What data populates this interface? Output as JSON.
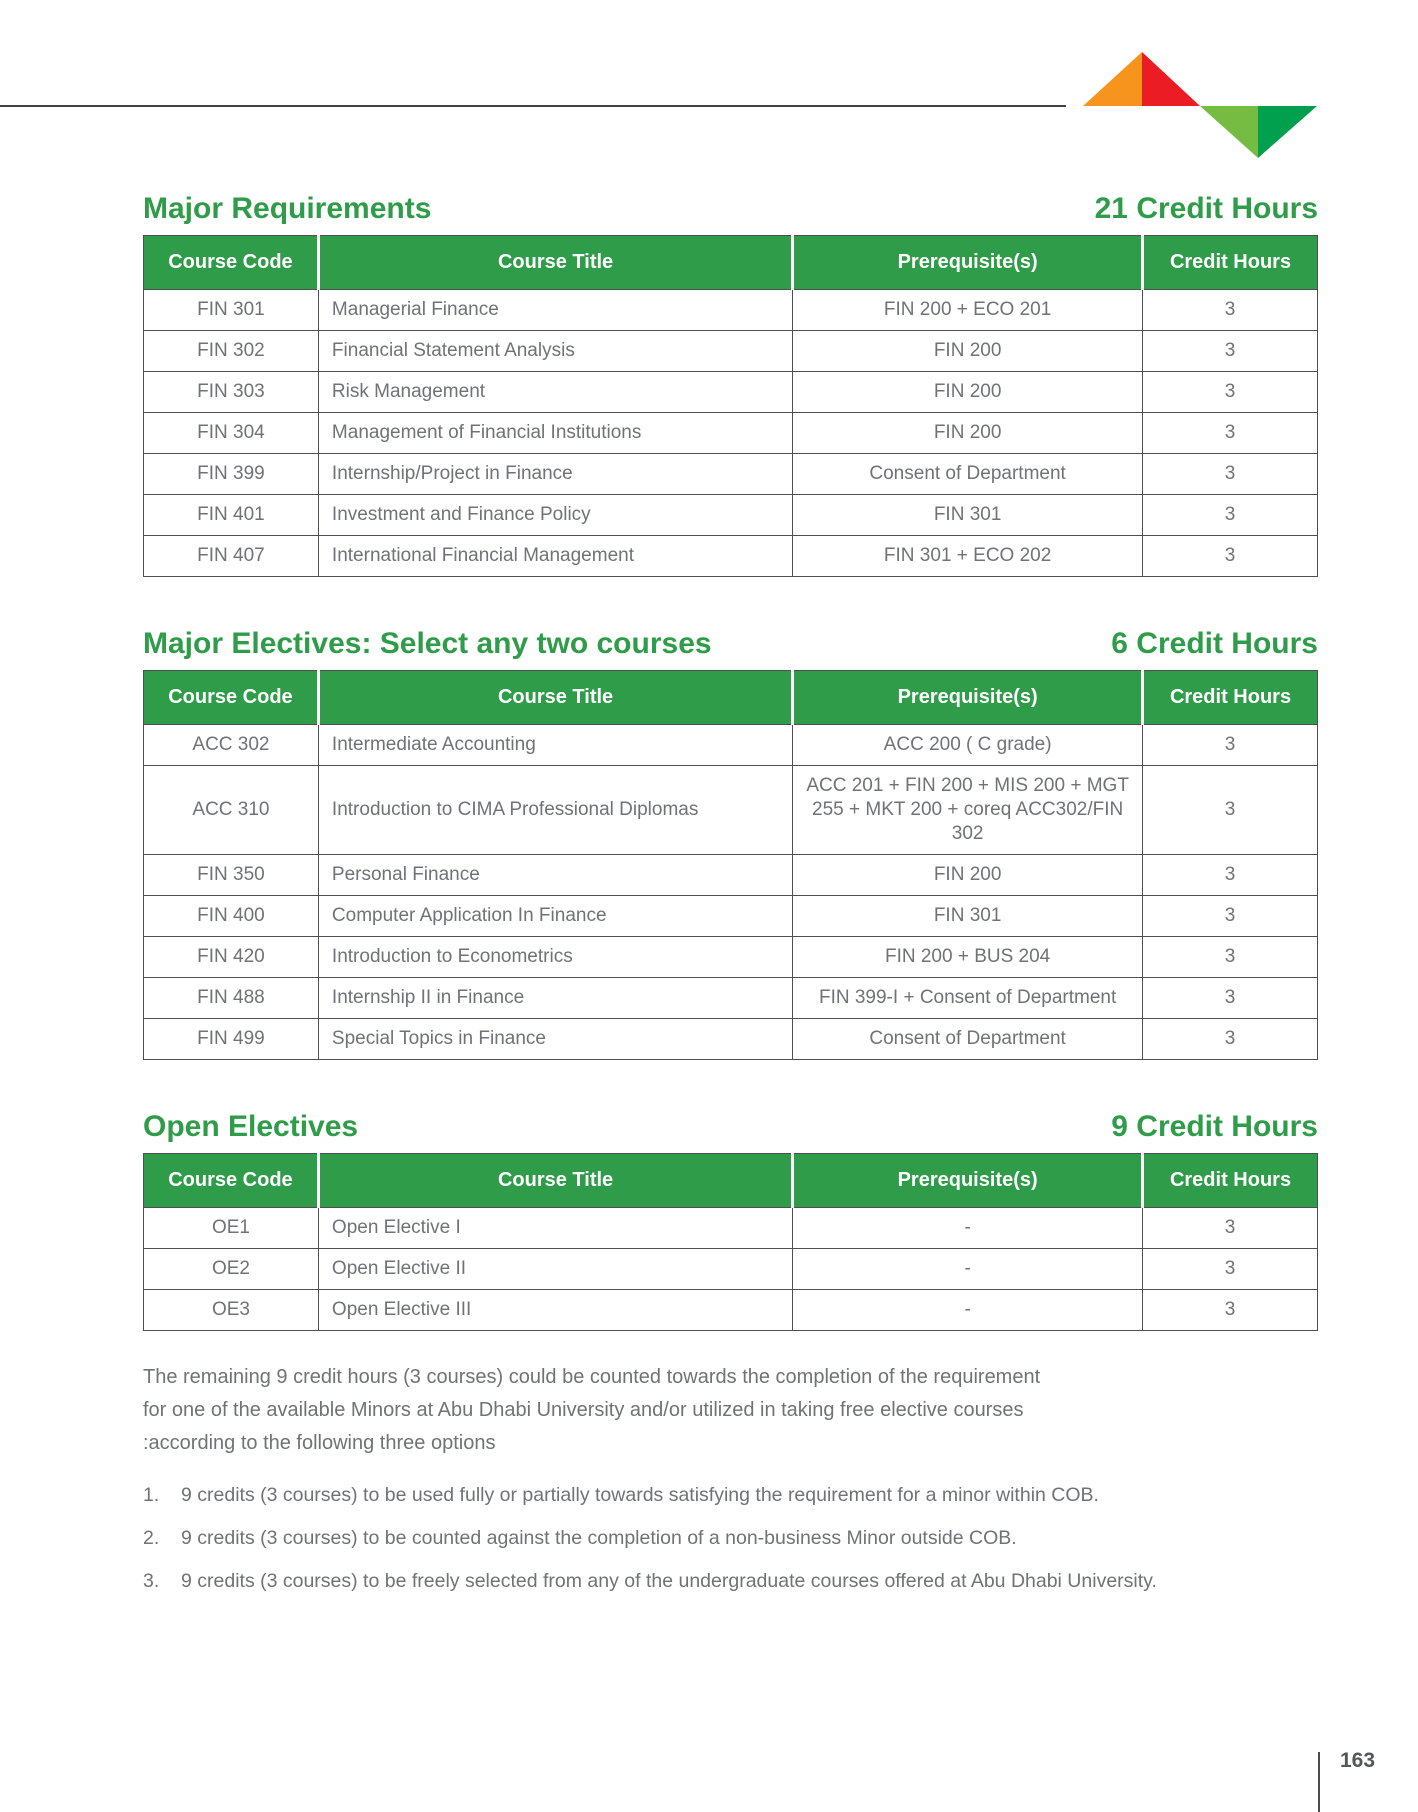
{
  "colors": {
    "green": "#2e9c48",
    "logo-orange": "#f7941d",
    "logo-red": "#ec1c24",
    "logo-lightgreen": "#76bc43",
    "logo-darkgreen": "#00a04e",
    "border": "#4d4e50",
    "text": "#707276",
    "pagenum": "#55565a"
  },
  "sections": [
    {
      "title": "Major Requirements",
      "credit_hours": "21 Credit Hours",
      "columns": [
        "Course Code",
        "Course Title",
        "Prerequisite(s)",
        "Credit Hours"
      ],
      "rows": [
        [
          "FIN 301",
          "Managerial Finance",
          "FIN 200 + ECO 201",
          "3"
        ],
        [
          "FIN 302",
          "Financial Statement Analysis",
          "FIN 200",
          "3"
        ],
        [
          "FIN 303",
          "Risk Management",
          "FIN 200",
          "3"
        ],
        [
          "FIN 304",
          "Management of Financial Institutions",
          "FIN 200",
          "3"
        ],
        [
          "FIN 399",
          "Internship/Project in Finance",
          "Consent of Department",
          "3"
        ],
        [
          "FIN 401",
          "Investment and Finance Policy",
          "FIN 301",
          "3"
        ],
        [
          "FIN 407",
          "International Financial Management",
          "FIN 301 + ECO 202",
          "3"
        ]
      ]
    },
    {
      "title": "Major Electives: Select any two courses",
      "credit_hours": "6 Credit Hours",
      "columns": [
        "Course Code",
        "Course Title",
        "Prerequisite(s)",
        "Credit Hours"
      ],
      "rows": [
        [
          "ACC 302",
          "Intermediate Accounting",
          "ACC 200 ( C grade)",
          "3"
        ],
        [
          "ACC 310",
          "Introduction to CIMA Professional Diplomas",
          "ACC 201 + FIN 200 + MIS 200 + MGT 255 + MKT 200 + coreq ACC302/FIN 302",
          "3"
        ],
        [
          "FIN 350",
          "Personal Finance",
          "FIN 200",
          "3"
        ],
        [
          "FIN 400",
          "Computer Application In Finance",
          "FIN 301",
          "3"
        ],
        [
          "FIN 420",
          "Introduction to Econometrics",
          "FIN 200 + BUS 204",
          "3"
        ],
        [
          "FIN 488",
          "Internship II in Finance",
          "FIN 399-I + Consent of Department",
          "3"
        ],
        [
          "FIN 499",
          "Special Topics in Finance",
          "Consent of Department",
          "3"
        ]
      ]
    },
    {
      "title": "Open Electives",
      "credit_hours": "9 Credit Hours",
      "columns": [
        "Course Code",
        "Course Title",
        "Prerequisite(s)",
        "Credit Hours"
      ],
      "rows": [
        [
          "OE1",
          "Open Elective I",
          "-",
          "3"
        ],
        [
          "OE2",
          "Open Elective II",
          "-",
          "3"
        ],
        [
          "OE3",
          "Open Elective III",
          "-",
          "3"
        ]
      ]
    }
  ],
  "notes": {
    "paragraph_lines": [
      "The remaining 9 credit hours (3 courses) could be counted towards the completion of the requirement",
      "for one of the available Minors at Abu Dhabi University and/or utilized in taking free elective courses",
      ":according to the following three options"
    ],
    "options": [
      {
        "marker": "1.",
        "text": "9 credits (3 courses) to be used fully or partially towards satisfying the requirement for a minor within COB."
      },
      {
        "marker": "2.",
        "text": "9 credits (3 courses) to be counted against the completion of a non-business Minor outside COB."
      },
      {
        "marker": "3.",
        "text": "9 credits (3 courses) to be freely selected from any of the undergraduate courses offered at Abu Dhabi University."
      }
    ]
  },
  "page": {
    "number": "163"
  }
}
